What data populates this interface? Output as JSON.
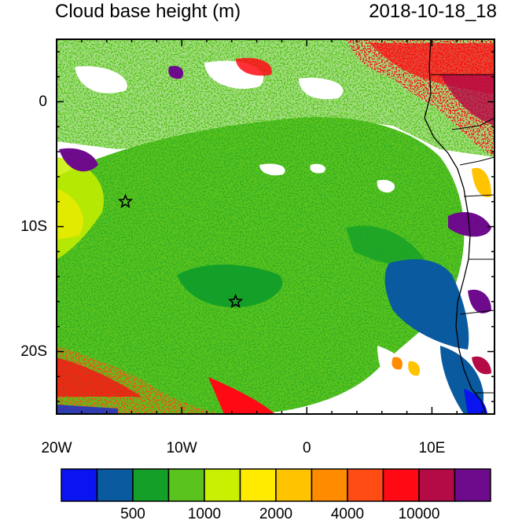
{
  "title": "Cloud base height (m)",
  "timestamp": "2018-10-18_18",
  "map": {
    "lon_range": [
      -20,
      15
    ],
    "lat_range": [
      -25,
      5
    ],
    "x_ticks": [
      {
        "lon": -20,
        "label": "20W"
      },
      {
        "lon": -10,
        "label": "10W"
      },
      {
        "lon": 0,
        "label": "0"
      },
      {
        "lon": 10,
        "label": "10E"
      }
    ],
    "y_ticks": [
      {
        "lat": 0,
        "label": "0"
      },
      {
        "lat": -10,
        "label": "10S"
      },
      {
        "lat": -20,
        "label": "20S"
      }
    ],
    "markers": [
      {
        "name": "star-marker",
        "lon": -14.5,
        "lat": -8
      },
      {
        "name": "star-marker",
        "lon": -5.7,
        "lat": -16
      }
    ]
  },
  "legend": {
    "colors": [
      "#0a14f0",
      "#0a5aa0",
      "#14a028",
      "#5ac31e",
      "#c8f000",
      "#ffeb00",
      "#ffc300",
      "#ff8c00",
      "#ff4b14",
      "#ff0a14",
      "#b40a46",
      "#6e0a8c"
    ],
    "labels": [
      "500",
      "1000",
      "2000",
      "4000",
      "10000"
    ]
  }
}
